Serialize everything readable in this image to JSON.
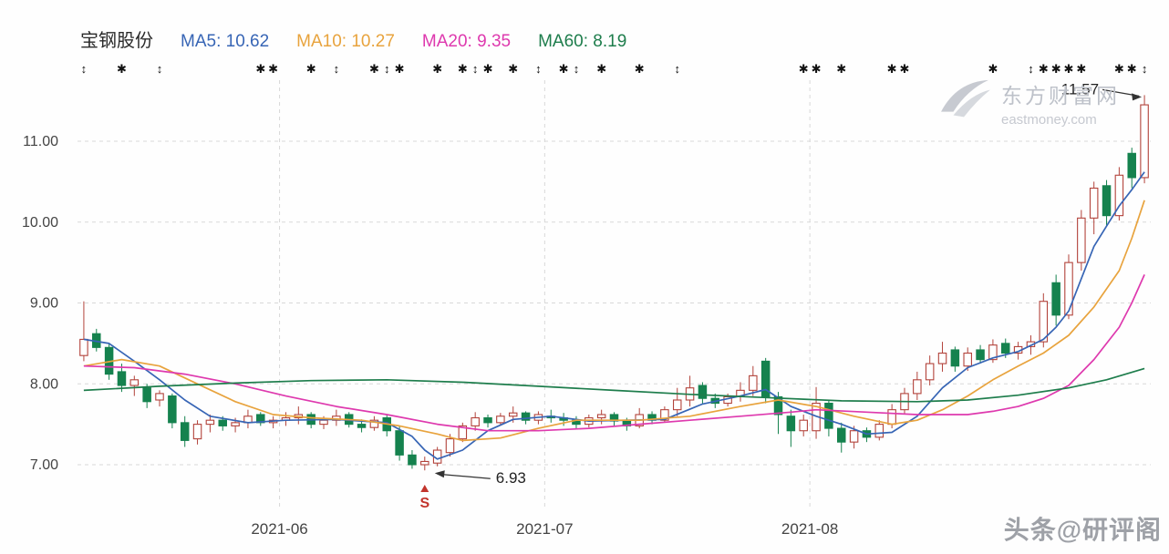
{
  "header": {
    "title": "宝钢股份",
    "ma_labels": [
      {
        "name": "MA5",
        "label": "MA5: 10.62",
        "value": 10.62,
        "color": "#3765b5"
      },
      {
        "name": "MA10",
        "label": "MA10: 10.27",
        "value": 10.27,
        "color": "#e8a33d"
      },
      {
        "name": "MA20",
        "label": "MA20: 9.35",
        "value": 9.35,
        "color": "#de39ae"
      },
      {
        "name": "MA60",
        "label": "MA60: 8.19",
        "value": 8.19,
        "color": "#1e7d4c"
      }
    ]
  },
  "chart_data": {
    "type": "candlestick",
    "title": "宝钢股份",
    "legend": [
      "MA5: 10.62",
      "MA10: 10.27",
      "MA20: 9.35",
      "MA60: 8.19"
    ],
    "y_axis": {
      "ticks": [
        11,
        10,
        9,
        8,
        7
      ],
      "tick_labels": [
        "11.00",
        "10.00",
        "9.00",
        "8.00",
        "7.00"
      ],
      "range": [
        6.45,
        11.75
      ],
      "grid": "dashed"
    },
    "x_axis": {
      "ticks": [
        {
          "label": "2021-06",
          "index": 16
        },
        {
          "label": "2021-07",
          "index": 37
        },
        {
          "label": "2021-08",
          "index": 58
        }
      ]
    },
    "colors": {
      "up": "#b2423a",
      "down": "#15824e",
      "grid": "#d8d8d8",
      "axis_text": "#444444",
      "marker": "#111111",
      "annotation_text": "#222222",
      "sell": "#c2342c"
    },
    "candles": [
      [
        8.35,
        9.02,
        8.28,
        8.55
      ],
      [
        8.62,
        8.68,
        8.4,
        8.45
      ],
      [
        8.45,
        8.5,
        8.05,
        8.12
      ],
      [
        8.15,
        8.25,
        7.9,
        7.98
      ],
      [
        7.98,
        8.1,
        7.85,
        8.05
      ],
      [
        7.95,
        8.0,
        7.7,
        7.78
      ],
      [
        7.8,
        7.92,
        7.72,
        7.88
      ],
      [
        7.85,
        7.88,
        7.45,
        7.52
      ],
      [
        7.52,
        7.6,
        7.22,
        7.3
      ],
      [
        7.32,
        7.55,
        7.25,
        7.5
      ],
      [
        7.5,
        7.62,
        7.4,
        7.55
      ],
      [
        7.55,
        7.6,
        7.42,
        7.48
      ],
      [
        7.48,
        7.58,
        7.4,
        7.52
      ],
      [
        7.52,
        7.68,
        7.45,
        7.6
      ],
      [
        7.62,
        7.65,
        7.48,
        7.52
      ],
      [
        7.52,
        7.6,
        7.45,
        7.55
      ],
      [
        7.55,
        7.65,
        7.48,
        7.58
      ],
      [
        7.58,
        7.72,
        7.5,
        7.62
      ],
      [
        7.62,
        7.65,
        7.45,
        7.5
      ],
      [
        7.5,
        7.6,
        7.44,
        7.55
      ],
      [
        7.55,
        7.68,
        7.48,
        7.6
      ],
      [
        7.62,
        7.65,
        7.46,
        7.5
      ],
      [
        7.5,
        7.56,
        7.4,
        7.46
      ],
      [
        7.46,
        7.6,
        7.42,
        7.55
      ],
      [
        7.58,
        7.62,
        7.35,
        7.42
      ],
      [
        7.42,
        7.48,
        7.05,
        7.12
      ],
      [
        7.12,
        7.18,
        6.95,
        7.0
      ],
      [
        7.0,
        7.1,
        6.93,
        7.04
      ],
      [
        7.02,
        7.22,
        6.98,
        7.18
      ],
      [
        7.15,
        7.38,
        7.1,
        7.32
      ],
      [
        7.32,
        7.52,
        7.28,
        7.48
      ],
      [
        7.48,
        7.65,
        7.42,
        7.58
      ],
      [
        7.58,
        7.62,
        7.46,
        7.52
      ],
      [
        7.52,
        7.64,
        7.48,
        7.6
      ],
      [
        7.6,
        7.72,
        7.52,
        7.64
      ],
      [
        7.64,
        7.66,
        7.5,
        7.55
      ],
      [
        7.55,
        7.66,
        7.5,
        7.62
      ],
      [
        7.6,
        7.68,
        7.52,
        7.58
      ],
      [
        7.58,
        7.64,
        7.48,
        7.55
      ],
      [
        7.55,
        7.6,
        7.44,
        7.5
      ],
      [
        7.5,
        7.62,
        7.46,
        7.58
      ],
      [
        7.58,
        7.68,
        7.5,
        7.62
      ],
      [
        7.62,
        7.65,
        7.48,
        7.54
      ],
      [
        7.54,
        7.58,
        7.42,
        7.48
      ],
      [
        7.48,
        7.7,
        7.45,
        7.62
      ],
      [
        7.62,
        7.66,
        7.5,
        7.55
      ],
      [
        7.55,
        7.72,
        7.52,
        7.68
      ],
      [
        7.68,
        7.95,
        7.6,
        7.8
      ],
      [
        7.8,
        8.1,
        7.72,
        7.95
      ],
      [
        7.98,
        8.02,
        7.76,
        7.82
      ],
      [
        7.82,
        7.88,
        7.7,
        7.76
      ],
      [
        7.76,
        7.88,
        7.72,
        7.84
      ],
      [
        7.84,
        8.02,
        7.78,
        7.92
      ],
      [
        7.92,
        8.22,
        7.85,
        8.1
      ],
      [
        8.28,
        8.32,
        7.76,
        7.84
      ],
      [
        7.84,
        7.9,
        7.38,
        7.62
      ],
      [
        7.6,
        7.68,
        7.22,
        7.42
      ],
      [
        7.42,
        7.62,
        7.35,
        7.55
      ],
      [
        7.42,
        7.96,
        7.32,
        7.76
      ],
      [
        7.76,
        7.8,
        7.35,
        7.45
      ],
      [
        7.45,
        7.52,
        7.15,
        7.28
      ],
      [
        7.28,
        7.48,
        7.2,
        7.42
      ],
      [
        7.42,
        7.46,
        7.28,
        7.34
      ],
      [
        7.34,
        7.55,
        7.3,
        7.5
      ],
      [
        7.5,
        7.75,
        7.45,
        7.68
      ],
      [
        7.68,
        7.95,
        7.62,
        7.88
      ],
      [
        7.88,
        8.15,
        7.8,
        8.05
      ],
      [
        8.05,
        8.35,
        7.98,
        8.25
      ],
      [
        8.25,
        8.52,
        8.15,
        8.38
      ],
      [
        8.42,
        8.46,
        8.15,
        8.22
      ],
      [
        8.22,
        8.45,
        8.16,
        8.38
      ],
      [
        8.42,
        8.48,
        8.25,
        8.3
      ],
      [
        8.3,
        8.55,
        8.26,
        8.48
      ],
      [
        8.5,
        8.56,
        8.32,
        8.38
      ],
      [
        8.38,
        8.52,
        8.3,
        8.46
      ],
      [
        8.46,
        8.6,
        8.36,
        8.52
      ],
      [
        8.52,
        9.12,
        8.45,
        9.02
      ],
      [
        9.25,
        9.35,
        8.72,
        8.85
      ],
      [
        8.85,
        9.6,
        8.8,
        9.5
      ],
      [
        9.5,
        10.15,
        9.4,
        10.05
      ],
      [
        10.05,
        10.5,
        9.85,
        10.42
      ],
      [
        10.45,
        10.52,
        9.95,
        10.08
      ],
      [
        10.08,
        10.68,
        10.02,
        10.58
      ],
      [
        10.85,
        10.92,
        10.42,
        10.55
      ],
      [
        10.55,
        11.57,
        10.48,
        11.45
      ]
    ],
    "ma_series": [
      {
        "name": "MA5",
        "color": "#3765b5",
        "points": [
          [
            0,
            8.55
          ],
          [
            2,
            8.5
          ],
          [
            4,
            8.28
          ],
          [
            6,
            8.05
          ],
          [
            8,
            7.8
          ],
          [
            10,
            7.6
          ],
          [
            13,
            7.52
          ],
          [
            16,
            7.55
          ],
          [
            20,
            7.56
          ],
          [
            24,
            7.52
          ],
          [
            26,
            7.35
          ],
          [
            27,
            7.18
          ],
          [
            28,
            7.07
          ],
          [
            30,
            7.18
          ],
          [
            32,
            7.42
          ],
          [
            34,
            7.56
          ],
          [
            37,
            7.6
          ],
          [
            40,
            7.54
          ],
          [
            43,
            7.55
          ],
          [
            46,
            7.56
          ],
          [
            49,
            7.75
          ],
          [
            52,
            7.85
          ],
          [
            54,
            7.93
          ],
          [
            56,
            7.72
          ],
          [
            58,
            7.6
          ],
          [
            60,
            7.5
          ],
          [
            62,
            7.38
          ],
          [
            64,
            7.4
          ],
          [
            66,
            7.6
          ],
          [
            68,
            7.95
          ],
          [
            70,
            8.2
          ],
          [
            72,
            8.32
          ],
          [
            74,
            8.4
          ],
          [
            76,
            8.55
          ],
          [
            77,
            8.7
          ],
          [
            78,
            8.9
          ],
          [
            79,
            9.3
          ],
          [
            80,
            9.7
          ],
          [
            81,
            9.95
          ],
          [
            82,
            10.2
          ],
          [
            83,
            10.4
          ],
          [
            84,
            10.62
          ]
        ]
      },
      {
        "name": "MA10",
        "color": "#e8a33d",
        "points": [
          [
            0,
            8.22
          ],
          [
            3,
            8.3
          ],
          [
            6,
            8.22
          ],
          [
            9,
            8.0
          ],
          [
            12,
            7.78
          ],
          [
            15,
            7.62
          ],
          [
            18,
            7.58
          ],
          [
            22,
            7.55
          ],
          [
            25,
            7.48
          ],
          [
            28,
            7.38
          ],
          [
            30,
            7.3
          ],
          [
            33,
            7.33
          ],
          [
            36,
            7.45
          ],
          [
            39,
            7.55
          ],
          [
            44,
            7.55
          ],
          [
            48,
            7.6
          ],
          [
            52,
            7.72
          ],
          [
            55,
            7.8
          ],
          [
            58,
            7.72
          ],
          [
            61,
            7.6
          ],
          [
            64,
            7.5
          ],
          [
            66,
            7.55
          ],
          [
            68,
            7.68
          ],
          [
            70,
            7.85
          ],
          [
            72,
            8.05
          ],
          [
            74,
            8.22
          ],
          [
            76,
            8.38
          ],
          [
            78,
            8.6
          ],
          [
            80,
            8.95
          ],
          [
            82,
            9.4
          ],
          [
            83,
            9.8
          ],
          [
            84,
            10.27
          ]
        ]
      },
      {
        "name": "MA20",
        "color": "#de39ae",
        "points": [
          [
            0,
            8.22
          ],
          [
            4,
            8.2
          ],
          [
            8,
            8.12
          ],
          [
            12,
            8.0
          ],
          [
            16,
            7.85
          ],
          [
            20,
            7.72
          ],
          [
            24,
            7.62
          ],
          [
            28,
            7.5
          ],
          [
            32,
            7.42
          ],
          [
            36,
            7.42
          ],
          [
            40,
            7.45
          ],
          [
            44,
            7.5
          ],
          [
            48,
            7.55
          ],
          [
            52,
            7.6
          ],
          [
            56,
            7.65
          ],
          [
            58,
            7.68
          ],
          [
            62,
            7.65
          ],
          [
            66,
            7.62
          ],
          [
            70,
            7.62
          ],
          [
            72,
            7.66
          ],
          [
            74,
            7.72
          ],
          [
            76,
            7.82
          ],
          [
            78,
            7.98
          ],
          [
            80,
            8.3
          ],
          [
            82,
            8.7
          ],
          [
            83,
            9.0
          ],
          [
            84,
            9.35
          ]
        ]
      },
      {
        "name": "MA60",
        "color": "#1e7d4c",
        "points": [
          [
            0,
            7.92
          ],
          [
            6,
            7.97
          ],
          [
            12,
            8.01
          ],
          [
            18,
            8.04
          ],
          [
            24,
            8.05
          ],
          [
            30,
            8.02
          ],
          [
            36,
            7.97
          ],
          [
            42,
            7.92
          ],
          [
            48,
            7.87
          ],
          [
            54,
            7.83
          ],
          [
            60,
            7.79
          ],
          [
            66,
            7.78
          ],
          [
            70,
            7.8
          ],
          [
            74,
            7.86
          ],
          [
            78,
            7.95
          ],
          [
            81,
            8.05
          ],
          [
            84,
            8.19
          ]
        ]
      }
    ],
    "annotations": {
      "low": {
        "text": "6.93",
        "index": 27,
        "price": 6.93
      },
      "high": {
        "text": "11.57",
        "index": 84,
        "price": 11.57
      },
      "sell_marker": {
        "text": "S",
        "index": 27
      }
    },
    "event_markers": [
      [
        0,
        "a"
      ],
      [
        3,
        "s"
      ],
      [
        6,
        "a"
      ],
      [
        14,
        "s"
      ],
      [
        15,
        "s"
      ],
      [
        18,
        "s"
      ],
      [
        20,
        "a"
      ],
      [
        23,
        "s"
      ],
      [
        24,
        "a"
      ],
      [
        25,
        "s"
      ],
      [
        28,
        "s"
      ],
      [
        30,
        "s"
      ],
      [
        31,
        "a"
      ],
      [
        32,
        "s"
      ],
      [
        34,
        "s"
      ],
      [
        36,
        "a"
      ],
      [
        38,
        "s"
      ],
      [
        39,
        "a"
      ],
      [
        41,
        "s"
      ],
      [
        44,
        "s"
      ],
      [
        47,
        "a"
      ],
      [
        57,
        "s"
      ],
      [
        58,
        "s"
      ],
      [
        60,
        "s"
      ],
      [
        64,
        "s"
      ],
      [
        65,
        "s"
      ],
      [
        72,
        "s"
      ],
      [
        75,
        "a"
      ],
      [
        76,
        "s"
      ],
      [
        77,
        "s"
      ],
      [
        78,
        "s"
      ],
      [
        79,
        "s"
      ],
      [
        82,
        "s"
      ],
      [
        83,
        "s"
      ],
      [
        84,
        "a"
      ]
    ]
  },
  "watermarks": {
    "eastmoney_cn": "东方财富网",
    "eastmoney_en": "eastmoney.com",
    "bottom_right": "头条@研评阁"
  }
}
